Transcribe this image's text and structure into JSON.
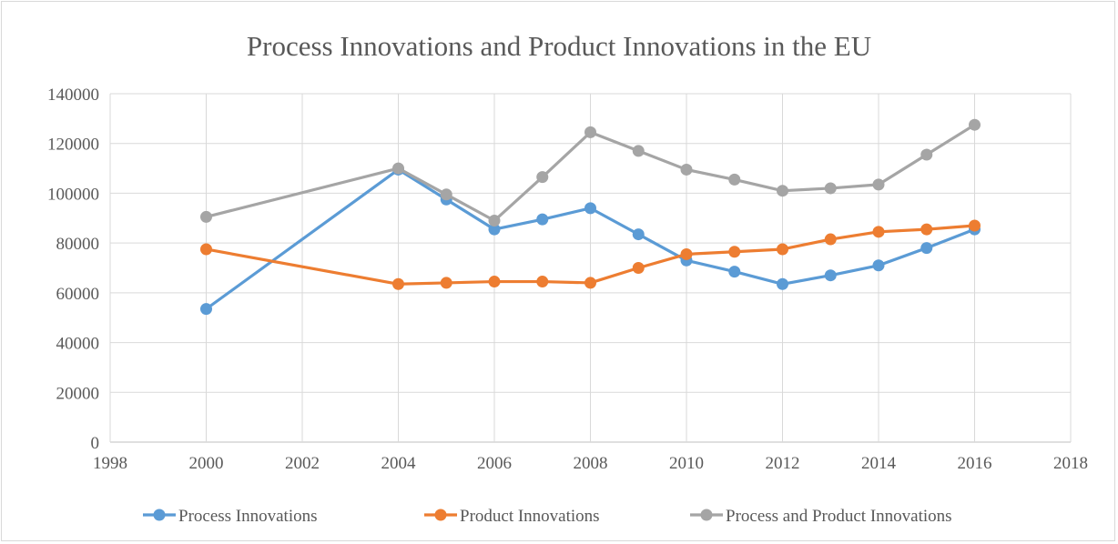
{
  "chart_data": {
    "type": "line",
    "title": "Process Innovations and Product Innovations in the EU",
    "xlabel": "",
    "ylabel": "",
    "xlim": [
      1998,
      2018
    ],
    "ylim": [
      0,
      140000
    ],
    "x_ticks": [
      "1998",
      "2000",
      "2002",
      "2004",
      "2006",
      "2008",
      "2010",
      "2012",
      "2014",
      "2016",
      "2018"
    ],
    "y_ticks": [
      "0",
      "20000",
      "40000",
      "60000",
      "80000",
      "100000",
      "120000",
      "140000"
    ],
    "grid": true,
    "legend_position": "bottom",
    "series": [
      {
        "name": "Process Innovations",
        "color": "#5b9bd5",
        "x": [
          2000,
          2004,
          2005,
          2006,
          2007,
          2008,
          2009,
          2010,
          2011,
          2012,
          2013,
          2014,
          2015,
          2016
        ],
        "values": [
          53500,
          109500,
          97500,
          85500,
          89500,
          94000,
          83500,
          73000,
          68500,
          63500,
          67000,
          71000,
          78000,
          85500
        ]
      },
      {
        "name": "Product Innovations",
        "color": "#ed7d31",
        "x": [
          2000,
          2004,
          2005,
          2006,
          2007,
          2008,
          2009,
          2010,
          2011,
          2012,
          2013,
          2014,
          2015,
          2016
        ],
        "values": [
          77500,
          63500,
          64000,
          64500,
          64500,
          64000,
          70000,
          75500,
          76500,
          77500,
          81500,
          84500,
          85500,
          87000
        ]
      },
      {
        "name": "Process and Product Innovations",
        "color": "#a5a5a5",
        "x": [
          2000,
          2004,
          2005,
          2006,
          2007,
          2008,
          2009,
          2010,
          2011,
          2012,
          2013,
          2014,
          2015,
          2016
        ],
        "values": [
          90500,
          110000,
          99500,
          89000,
          106500,
          124500,
          117000,
          109500,
          105500,
          101000,
          102000,
          103500,
          115500,
          127500
        ]
      }
    ]
  }
}
